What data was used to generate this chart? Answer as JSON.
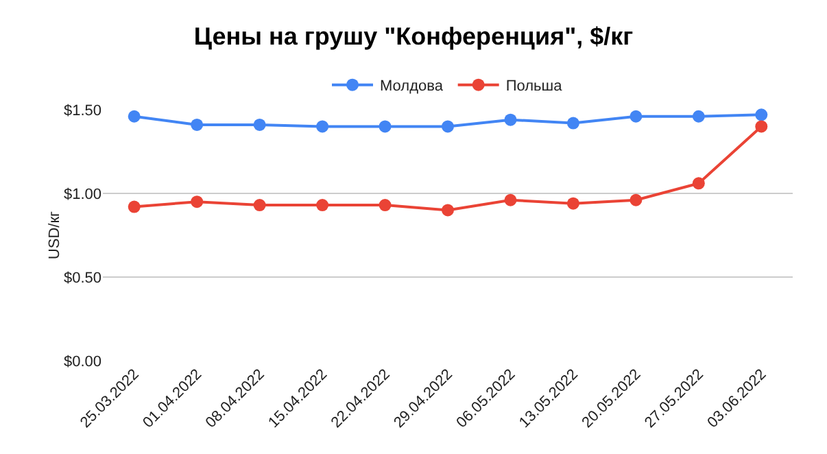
{
  "chart_data": {
    "type": "line",
    "title": "Цены на грушу \"Конференция\", $/кг",
    "ylabel": "USD/кг",
    "categories": [
      "25.03.2022",
      "01.04.2022",
      "08.04.2022",
      "15.04.2022",
      "22.04.2022",
      "29.04.2022",
      "06.05.2022",
      "13.05.2022",
      "20.05.2022",
      "27.05.2022",
      "03.06.2022"
    ],
    "series": [
      {
        "name": "Молдова",
        "color": "#4285f4",
        "values": [
          1.46,
          1.41,
          1.41,
          1.4,
          1.4,
          1.4,
          1.44,
          1.42,
          1.46,
          1.46,
          1.47
        ]
      },
      {
        "name": "Польша",
        "color": "#ea4335",
        "values": [
          0.92,
          0.95,
          0.93,
          0.93,
          0.93,
          0.9,
          0.96,
          0.94,
          0.96,
          1.06,
          1.4
        ]
      }
    ],
    "ylim": [
      0,
      1.5
    ],
    "yticks": [
      {
        "value": 0,
        "label": "$0.00"
      },
      {
        "value": 0.5,
        "label": "$0.50"
      },
      {
        "value": 1,
        "label": "$1.00"
      },
      {
        "value": 1.5,
        "label": "$1.50"
      }
    ],
    "grid": "y",
    "legend": "top",
    "marker": "circle",
    "line_style": "solid"
  }
}
